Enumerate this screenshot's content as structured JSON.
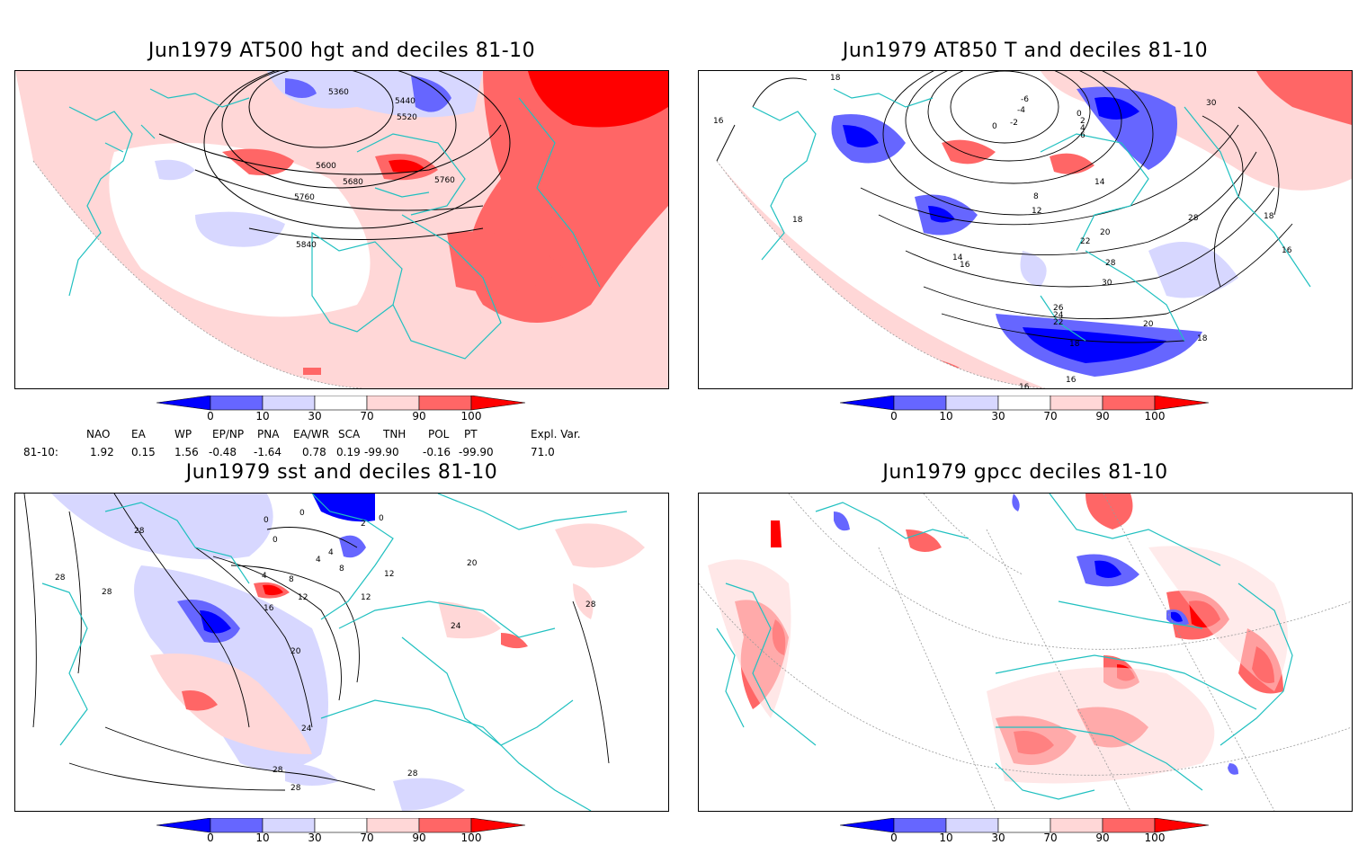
{
  "panels": [
    {
      "title": "Jun1979 AT500 hgt and deciles 81-10",
      "contour_labels": [
        "5360",
        "5440",
        "5520",
        "5600",
        "5680",
        "5760",
        "5760",
        "5840"
      ]
    },
    {
      "title": "Jun1979 AT850 T and deciles 81-10",
      "contour_labels": [
        "18",
        "16",
        "18",
        "-6",
        "-4",
        "-2",
        "0",
        "0",
        "2",
        "4",
        "6",
        "8",
        "12",
        "14",
        "14",
        "16",
        "20",
        "22",
        "28",
        "30",
        "30",
        "26",
        "24",
        "22",
        "20",
        "18",
        "18",
        "16",
        "16",
        "28",
        "18",
        "16"
      ]
    },
    {
      "title": "Jun1979 sst and deciles 81-10",
      "contour_labels": [
        "28",
        "28",
        "28",
        "0",
        "0",
        "0",
        "4",
        "2",
        "0",
        "4",
        "8",
        "8",
        "12",
        "12",
        "16",
        "20",
        "24",
        "28",
        "28",
        "24",
        "28",
        "28",
        "12",
        "20",
        "4"
      ]
    },
    {
      "title": "Jun1979 gpcc deciles 81-10",
      "contour_labels": []
    }
  ],
  "colorbar": {
    "ticks": [
      "0",
      "10",
      "30",
      "70",
      "90",
      "100"
    ],
    "colors": [
      "#0000ff",
      "#6666ff",
      "#d7d7ff",
      "#ffffff",
      "#ffd7d7",
      "#ff6666",
      "#ff0000"
    ]
  },
  "indices": {
    "row_label": "81-10:",
    "headers": [
      "NAO",
      "EA",
      "WP",
      "EP/NP",
      "PNA",
      "EA/WR",
      "SCA",
      "TNH",
      "POL",
      "PT",
      "Expl. Var."
    ],
    "values": [
      "1.92",
      "0.15",
      "1.56",
      "-0.48",
      "-1.64",
      "0.78",
      "0.19",
      "-99.90",
      "-0.16",
      "-99.90",
      "71.0"
    ]
  }
}
